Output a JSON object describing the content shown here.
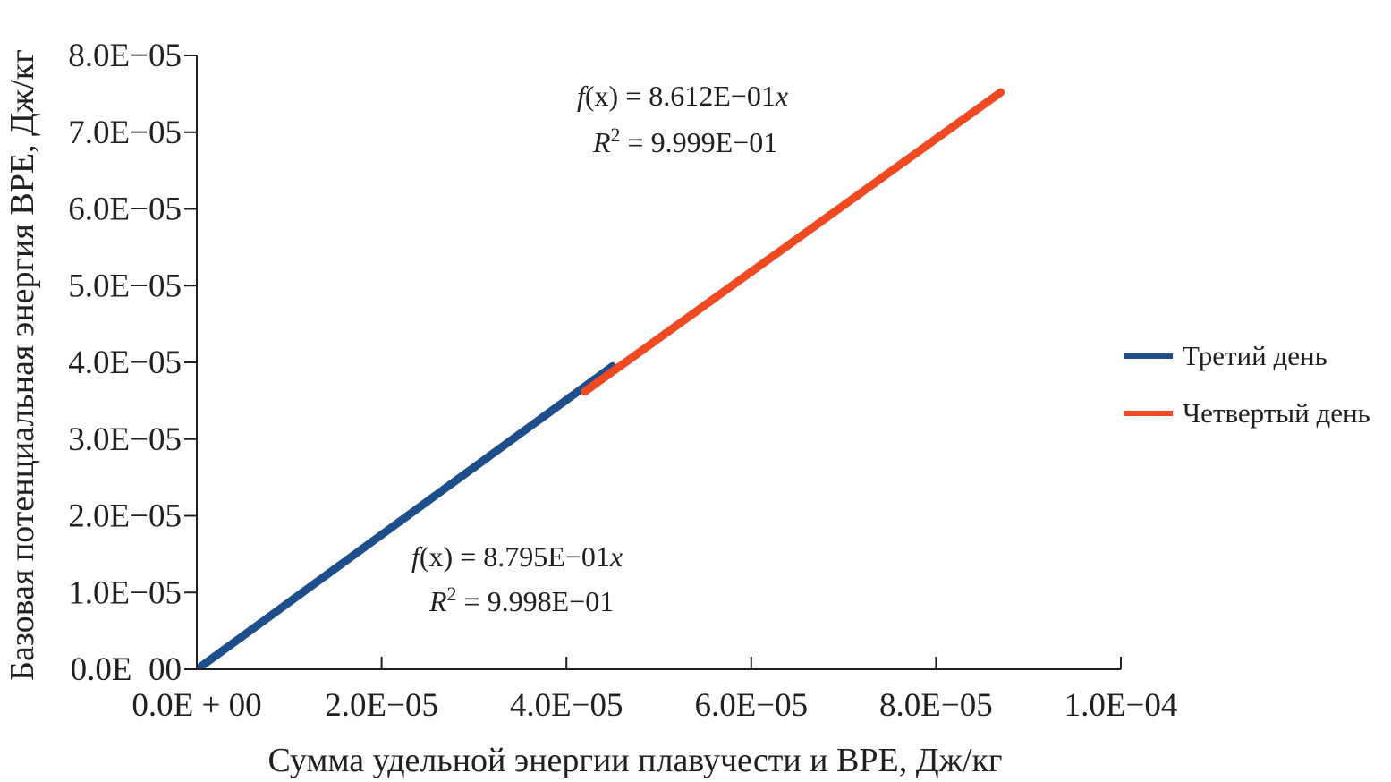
{
  "chart_data": {
    "type": "line",
    "xlabel": "Сумма удельной энергии плавучести и BPE, Дж/кг",
    "ylabel": "Базовая потенциальная энергия BPE, Дж/кг",
    "xlim": [
      0,
      0.0001
    ],
    "ylim": [
      0,
      8e-05
    ],
    "x_ticks": [
      0,
      2e-05,
      4e-05,
      6e-05,
      8e-05,
      0.0001
    ],
    "x_tick_labels": [
      "0.0E + 00",
      "2.0E−05",
      "4.0E−05",
      "6.0E−05",
      "8.0E−05",
      "1.0E−04"
    ],
    "y_ticks": [
      0,
      1e-05,
      2e-05,
      3e-05,
      4e-05,
      5e-05,
      6e-05,
      7e-05,
      8e-05
    ],
    "y_tick_labels": [
      "0.0E  00",
      "1.0E−05",
      "2.0E−05",
      "3.0E−05",
      "4.0E−05",
      "5.0E−05",
      "6.0E−05",
      "7.0E−05",
      "8.0E−05"
    ],
    "grid": false,
    "legend_position": "right",
    "series": [
      {
        "name": "Третий день",
        "color": "#1f4e8c",
        "x": [
          5e-07,
          4.5e-05
        ],
        "y": [
          4e-07,
          3.95e-05
        ]
      },
      {
        "name": "Четвертый день",
        "color": "#f04a23",
        "x": [
          4.2e-05,
          8.7e-05
        ],
        "y": [
          3.62e-05,
          7.52e-05
        ]
      }
    ],
    "annotations": [
      {
        "f_prefix": "f",
        "f_body": "(x) = 8.612E−01",
        "f_var": "x",
        "r_var": "R",
        "r_exp": "2",
        "r_body": " = 9.999E−01"
      },
      {
        "f_prefix": "f",
        "f_body": "(x) = 8.795E−01",
        "f_var": "x",
        "r_var": "R",
        "r_exp": "2",
        "r_body": " = 9.998E−01"
      }
    ]
  }
}
